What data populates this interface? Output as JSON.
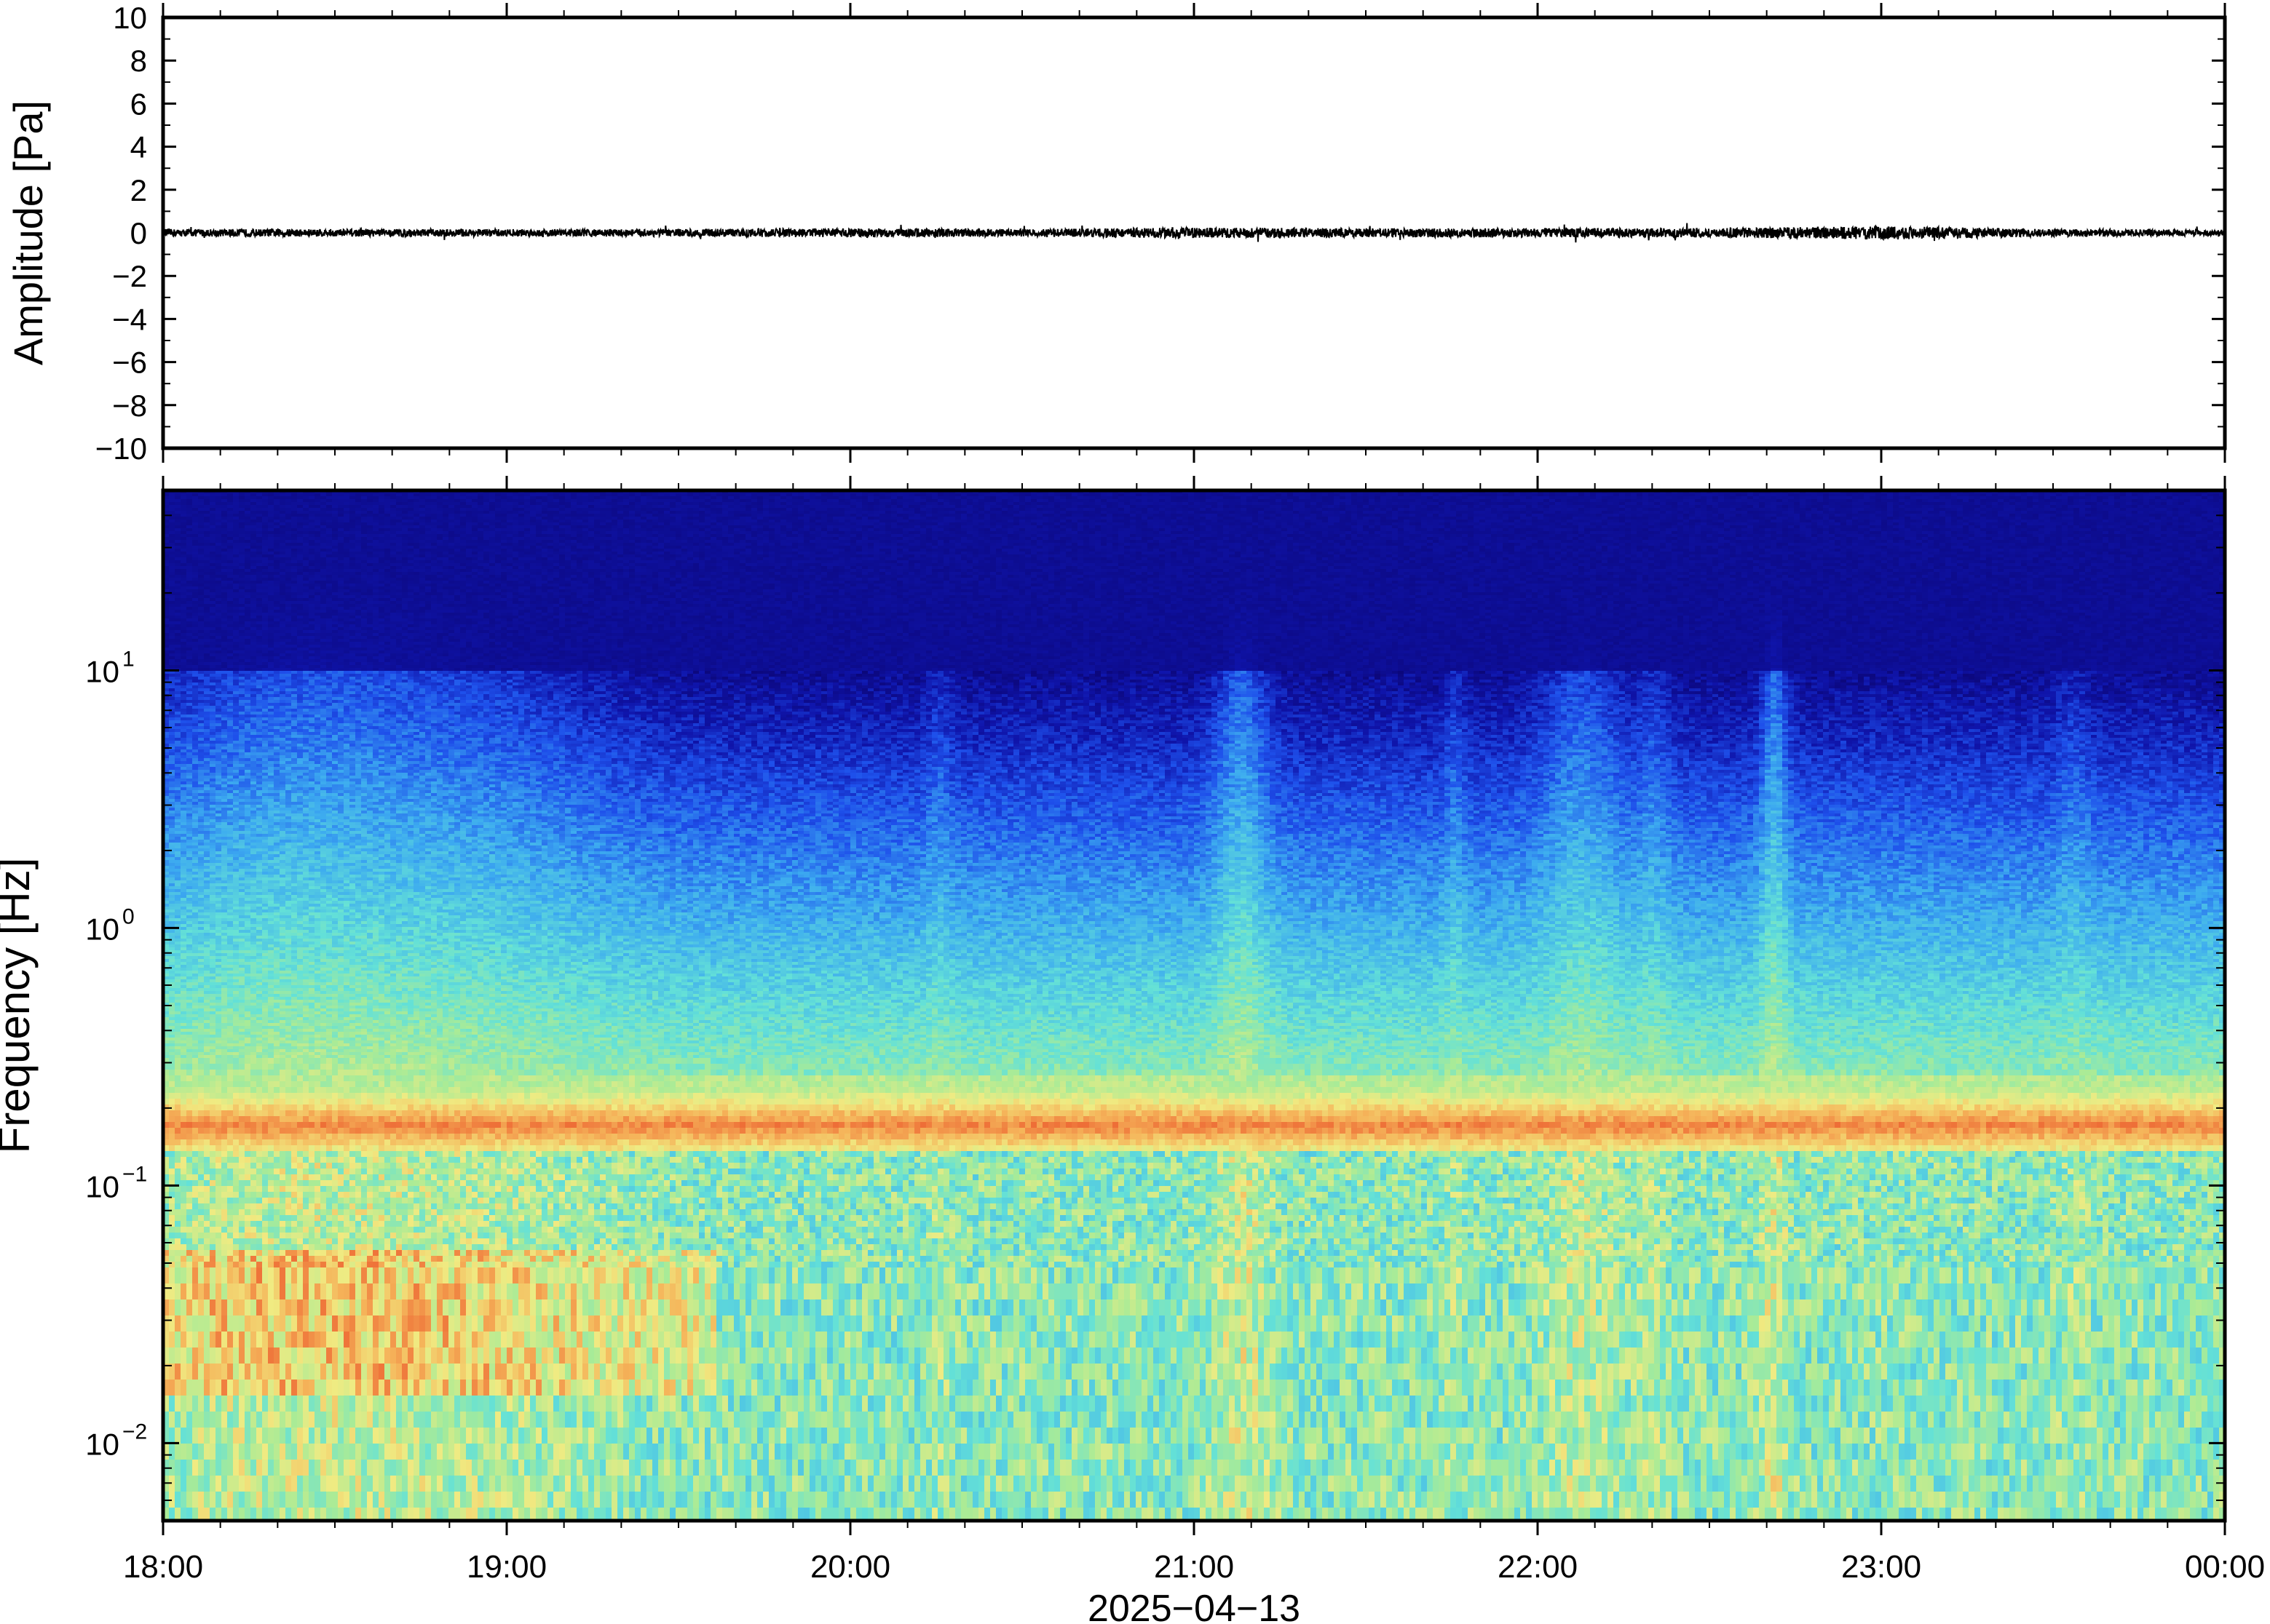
{
  "chart_data": [
    {
      "type": "line",
      "panel": "waveform",
      "ylabel": "Amplitude [Pa]",
      "ylim": [
        -10,
        10
      ],
      "y_ticks": [
        10,
        8,
        6,
        4,
        2,
        0,
        -2,
        -4,
        -6,
        -8,
        -10
      ],
      "y_tick_labels": [
        "10",
        "8",
        "6",
        "4",
        "2",
        "0",
        "−2",
        "−4",
        "−6",
        "−8",
        "−10"
      ],
      "x_range": [
        "18:00",
        "00:00"
      ],
      "series": [
        {
          "color": "#000000",
          "x_hours": [
            18.0,
            18.5,
            19.0,
            19.5,
            20.0,
            20.5,
            21.0,
            21.5,
            22.0,
            22.5,
            23.0,
            23.5,
            24.0
          ],
          "envelope_pa": [
            0.25,
            0.25,
            0.25,
            0.25,
            0.3,
            0.25,
            0.35,
            0.3,
            0.3,
            0.3,
            0.45,
            0.25,
            0.2
          ]
        }
      ]
    },
    {
      "type": "heatmap",
      "panel": "spectrogram",
      "ylabel": "Frequency [Hz]",
      "y_scale": "log",
      "ylim": [
        0.005,
        50
      ],
      "y_ticks": [
        {
          "value": 10,
          "base": "10",
          "exp": "1"
        },
        {
          "value": 1,
          "base": "10",
          "exp": "0"
        },
        {
          "value": 0.1,
          "base": "10",
          "exp": "−1"
        },
        {
          "value": 0.01,
          "base": "10",
          "exp": "−2"
        }
      ],
      "x_tick_labels": [
        "18:00",
        "19:00",
        "20:00",
        "21:00",
        "22:00",
        "23:00",
        "00:00"
      ],
      "xlabel": "2025−04−13",
      "colormap": "jet-like (dark navy → blue → cyan → yellow → orange)",
      "features": {
        "microseism_band_hz": [
          0.14,
          0.22
        ],
        "microseism_color": "#f08a3c",
        "top_quiet_color": "#0b0575",
        "broadband_bursts_time": [
          "21:05–21:15",
          "22:00–22:25",
          "22:38–22:44"
        ]
      }
    }
  ]
}
